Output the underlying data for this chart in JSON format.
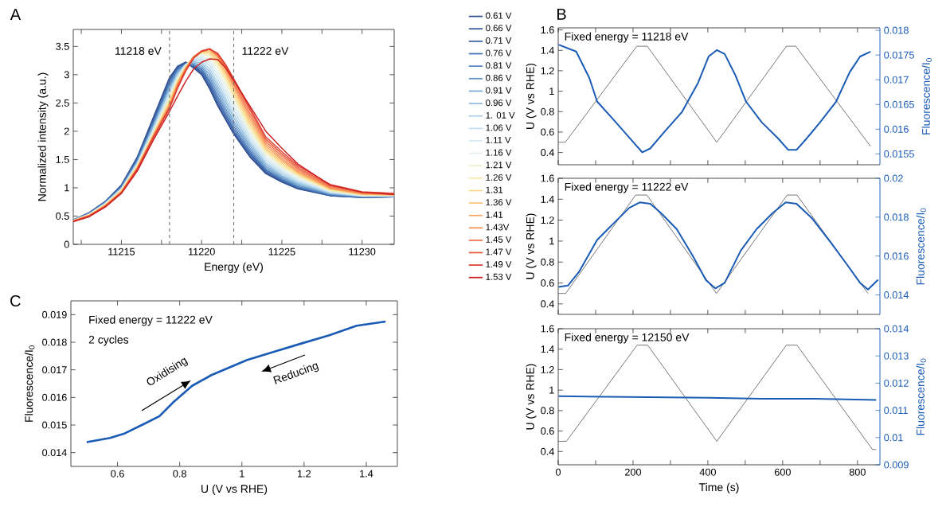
{
  "chart_data": [
    {
      "type": "line",
      "xlabel": "Energy (eV)",
      "ylabel": "Normalized intensity (a.u.)",
      "annotations": [
        "A"
      ],
      "xlim": [
        11212,
        11232
      ],
      "ylim": [
        0,
        3.8
      ],
      "xticks": [
        {
          "value": 11212.5,
          "label": null
        },
        11215,
        {
          "value": 11217.5,
          "label": null
        },
        11220,
        {
          "value": 11222.5,
          "label": null
        },
        11225,
        {
          "value": 11227.5,
          "label": null
        },
        11230
      ],
      "yticks": [
        0,
        0.5,
        1,
        1.5,
        2,
        2.5,
        3,
        3.5
      ],
      "legend": "right",
      "line_style": "solid",
      "ref_lines": [
        {
          "axis": "x",
          "value": 11218,
          "label": "11218 eV",
          "color": "#707070",
          "line_style": "dashed"
        },
        {
          "axis": "x",
          "value": 11222,
          "label": "11222 eV",
          "color": "#707070",
          "line_style": "dashed"
        }
      ],
      "x": [
        11212,
        11213,
        11214,
        11215,
        11216,
        11217,
        11218,
        11218.5,
        11219,
        11219.5,
        11220,
        11220.5,
        11221,
        11221.5,
        11222,
        11223,
        11224,
        11225,
        11226,
        11228,
        11230,
        11232
      ],
      "series": [
        {
          "name": "0.61 V",
          "color": "#2f4e8f",
          "values": [
            0.43,
            0.56,
            0.76,
            1.05,
            1.55,
            2.25,
            2.95,
            3.15,
            3.22,
            3.12,
            3.0,
            2.75,
            2.45,
            2.2,
            1.95,
            1.55,
            1.25,
            1.1,
            0.98,
            0.86,
            0.83,
            0.84
          ]
        },
        {
          "name": "0.66 V",
          "color": "#34569a",
          "values": [
            0.43,
            0.56,
            0.76,
            1.04,
            1.54,
            2.23,
            2.93,
            3.14,
            3.22,
            3.14,
            3.02,
            2.78,
            2.48,
            2.22,
            1.97,
            1.57,
            1.27,
            1.11,
            0.99,
            0.86,
            0.83,
            0.84
          ]
        },
        {
          "name": "0.71 V",
          "color": "#3a60a6",
          "values": [
            0.43,
            0.55,
            0.75,
            1.03,
            1.52,
            2.2,
            2.9,
            3.12,
            3.2,
            3.15,
            3.05,
            2.82,
            2.52,
            2.26,
            2.0,
            1.6,
            1.29,
            1.12,
            1.0,
            0.87,
            0.83,
            0.84
          ]
        },
        {
          "name": "0.76 V",
          "color": "#4470b0",
          "values": [
            0.43,
            0.55,
            0.75,
            1.02,
            1.5,
            2.17,
            2.86,
            3.1,
            3.19,
            3.16,
            3.08,
            2.86,
            2.57,
            2.3,
            2.04,
            1.63,
            1.31,
            1.14,
            1.01,
            0.87,
            0.84,
            0.84
          ]
        },
        {
          "name": "0.81 V",
          "color": "#5282be",
          "values": [
            0.43,
            0.55,
            0.74,
            1.01,
            1.49,
            2.15,
            2.83,
            3.08,
            3.18,
            3.17,
            3.1,
            2.9,
            2.62,
            2.35,
            2.08,
            1.66,
            1.33,
            1.16,
            1.02,
            0.88,
            0.84,
            0.85
          ]
        },
        {
          "name": "0.86 V",
          "color": "#6496c9",
          "values": [
            0.42,
            0.54,
            0.74,
            1.0,
            1.47,
            2.12,
            2.8,
            3.06,
            3.18,
            3.19,
            3.13,
            2.95,
            2.68,
            2.4,
            2.13,
            1.7,
            1.36,
            1.18,
            1.04,
            0.89,
            0.84,
            0.85
          ]
        },
        {
          "name": "0.91 V",
          "color": "#7aaad4",
          "values": [
            0.42,
            0.54,
            0.73,
            0.99,
            1.46,
            2.1,
            2.77,
            3.04,
            3.18,
            3.21,
            3.16,
            3.0,
            2.74,
            2.46,
            2.18,
            1.74,
            1.39,
            1.2,
            1.06,
            0.9,
            0.85,
            0.85
          ]
        },
        {
          "name": "0.96 V",
          "color": "#92bedf",
          "values": [
            0.42,
            0.54,
            0.73,
            0.99,
            1.45,
            2.08,
            2.74,
            3.02,
            3.18,
            3.23,
            3.2,
            3.05,
            2.8,
            2.52,
            2.24,
            1.78,
            1.42,
            1.22,
            1.08,
            0.9,
            0.85,
            0.85
          ]
        },
        {
          "name": "1. 01 V",
          "color": "#a9d0e8",
          "values": [
            0.42,
            0.53,
            0.72,
            0.98,
            1.44,
            2.06,
            2.71,
            3.0,
            3.18,
            3.25,
            3.24,
            3.1,
            2.86,
            2.58,
            2.3,
            1.82,
            1.45,
            1.25,
            1.1,
            0.91,
            0.85,
            0.86
          ]
        },
        {
          "name": "1.06 V",
          "color": "#bfdeef",
          "values": [
            0.42,
            0.53,
            0.72,
            0.98,
            1.43,
            2.04,
            2.68,
            2.98,
            3.18,
            3.27,
            3.28,
            3.16,
            2.93,
            2.65,
            2.37,
            1.87,
            1.49,
            1.28,
            1.12,
            0.92,
            0.86,
            0.86
          ]
        },
        {
          "name": "1.11 V",
          "color": "#d3e9f2",
          "values": [
            0.42,
            0.53,
            0.72,
            0.97,
            1.42,
            2.02,
            2.65,
            2.96,
            3.17,
            3.28,
            3.31,
            3.21,
            3.0,
            2.72,
            2.44,
            1.92,
            1.53,
            1.31,
            1.14,
            0.93,
            0.86,
            0.86
          ]
        },
        {
          "name": "1.16 V",
          "color": "#e4efe9",
          "values": [
            0.42,
            0.53,
            0.71,
            0.97,
            1.41,
            2.0,
            2.62,
            2.94,
            3.16,
            3.3,
            3.34,
            3.26,
            3.06,
            2.79,
            2.5,
            1.97,
            1.57,
            1.34,
            1.17,
            0.94,
            0.87,
            0.87
          ]
        },
        {
          "name": "1.21 V",
          "color": "#eef0cc",
          "values": [
            0.42,
            0.52,
            0.71,
            0.96,
            1.4,
            1.98,
            2.59,
            2.92,
            3.15,
            3.31,
            3.37,
            3.31,
            3.12,
            2.86,
            2.57,
            2.02,
            1.61,
            1.37,
            1.2,
            0.95,
            0.87,
            0.87
          ]
        },
        {
          "name": "1.26 V",
          "color": "#f7e9a8",
          "values": [
            0.42,
            0.52,
            0.7,
            0.95,
            1.39,
            1.96,
            2.56,
            2.9,
            3.14,
            3.32,
            3.39,
            3.35,
            3.18,
            2.92,
            2.63,
            2.07,
            1.64,
            1.4,
            1.22,
            0.96,
            0.88,
            0.87
          ]
        },
        {
          "name": "1.31",
          "color": "#fbd98a",
          "values": [
            0.42,
            0.52,
            0.7,
            0.95,
            1.38,
            1.95,
            2.53,
            2.88,
            3.13,
            3.32,
            3.4,
            3.38,
            3.22,
            2.97,
            2.68,
            2.12,
            1.67,
            1.43,
            1.24,
            0.97,
            0.88,
            0.87
          ]
        },
        {
          "name": "1.36 V",
          "color": "#fcc476",
          "values": [
            0.42,
            0.51,
            0.69,
            0.94,
            1.37,
            1.94,
            2.5,
            2.86,
            3.12,
            3.32,
            3.41,
            3.41,
            3.26,
            3.02,
            2.73,
            2.17,
            1.7,
            1.46,
            1.26,
            0.98,
            0.89,
            0.88
          ]
        },
        {
          "name": "1.41",
          "color": "#fba865",
          "values": [
            0.41,
            0.51,
            0.69,
            0.93,
            1.36,
            1.93,
            2.47,
            2.84,
            3.11,
            3.32,
            3.42,
            3.44,
            3.3,
            3.06,
            2.78,
            2.22,
            1.74,
            1.49,
            1.28,
            0.99,
            0.89,
            0.88
          ]
        },
        {
          "name": "1.43V",
          "color": "#f88e56",
          "values": [
            0.41,
            0.51,
            0.68,
            0.92,
            1.35,
            1.92,
            2.45,
            2.82,
            3.1,
            3.32,
            3.42,
            3.45,
            3.33,
            3.1,
            2.82,
            2.27,
            1.78,
            1.52,
            1.3,
            1.0,
            0.9,
            0.89
          ]
        },
        {
          "name": "1.45 V",
          "color": "#f27248",
          "values": [
            0.41,
            0.5,
            0.68,
            0.92,
            1.34,
            1.91,
            2.43,
            2.8,
            3.09,
            3.31,
            3.42,
            3.46,
            3.35,
            3.13,
            2.86,
            2.32,
            1.82,
            1.56,
            1.33,
            1.02,
            0.91,
            0.89
          ]
        },
        {
          "name": "1.47 V",
          "color": "#e9573b",
          "values": [
            0.41,
            0.5,
            0.67,
            0.91,
            1.33,
            1.9,
            2.42,
            2.78,
            3.08,
            3.3,
            3.42,
            3.46,
            3.37,
            3.16,
            2.9,
            2.38,
            1.86,
            1.6,
            1.36,
            1.04,
            0.92,
            0.9
          ]
        },
        {
          "name": "1.49 V",
          "color": "#de3e2f",
          "values": [
            0.41,
            0.5,
            0.67,
            0.91,
            1.33,
            1.89,
            2.4,
            2.76,
            3.06,
            3.29,
            3.41,
            3.45,
            3.38,
            3.18,
            2.93,
            2.42,
            1.9,
            1.64,
            1.39,
            1.06,
            0.93,
            0.9
          ]
        },
        {
          "name": "1.53 V",
          "color": "#cc2222",
          "values": [
            0.4,
            0.49,
            0.66,
            0.9,
            1.3,
            1.85,
            2.35,
            2.62,
            2.88,
            3.1,
            3.22,
            3.28,
            3.27,
            3.12,
            2.9,
            2.45,
            2.0,
            1.7,
            1.42,
            1.05,
            0.92,
            0.88
          ]
        }
      ]
    },
    {
      "type": "line",
      "ylabel": "U (V vs RHE)",
      "y2label": "Fluorescence/I$_{0}$",
      "annotations": [
        "B",
        "Fixed energy = 11218 eV"
      ],
      "tick_labels": "y",
      "xlim": [
        0,
        860
      ],
      "xticks": [
        0,
        {
          "value": 100,
          "label": null
        },
        200,
        {
          "value": 300,
          "label": null
        },
        400,
        {
          "value": 500,
          "label": null
        },
        600,
        {
          "value": 700,
          "label": null
        },
        800
      ],
      "ylim": [
        0.28,
        1.62
      ],
      "yticks": [
        0.4,
        0.6,
        0.8,
        1,
        1.2,
        1.4,
        1.6
      ],
      "y2lim": [
        0.01528,
        0.01805
      ],
      "y2ticks": [
        0.0155,
        0.016,
        0.0165,
        0.017,
        0.0175,
        0.018
      ],
      "series": [
        {
          "color": "#555555",
          "x": [
            0,
            19,
            210,
            238,
            424,
            610,
            635,
            835
          ],
          "values": [
            0.5,
            0.5,
            1.44,
            1.44,
            0.5,
            1.44,
            1.44,
            0.46
          ]
        },
        {
          "color": "#1a5bb5",
          "axis": "y2",
          "x": [
            1,
            48,
            83,
            104,
            154,
            204,
            225,
            246,
            282,
            331,
            374,
            402,
            424,
            445,
            473,
            502,
            544,
            587,
            615,
            637,
            665,
            700,
            743,
            779,
            807,
            835
          ],
          "values": [
            0.01771,
            0.01757,
            0.01704,
            0.01656,
            0.01614,
            0.01571,
            0.01553,
            0.01561,
            0.01593,
            0.01635,
            0.01694,
            0.01747,
            0.0176,
            0.01752,
            0.0171,
            0.01656,
            0.01614,
            0.01582,
            0.01558,
            0.01558,
            0.01582,
            0.01614,
            0.01656,
            0.01715,
            0.01747,
            0.01757
          ]
        }
      ]
    },
    {
      "type": "line",
      "ylabel": "U (V vs RHE)",
      "y2label": "Fluorescence/I$_{0}$",
      "annotations": [
        "Fixed energy = 11222 eV"
      ],
      "tick_labels": "y",
      "xlim": [
        0,
        860
      ],
      "xticks": [
        0,
        {
          "value": 100,
          "label": null
        },
        200,
        {
          "value": 300,
          "label": null
        },
        400,
        {
          "value": 500,
          "label": null
        },
        600,
        {
          "value": 700,
          "label": null
        },
        800
      ],
      "ylim": [
        0.3,
        1.6
      ],
      "yticks": [
        0.4,
        0.6,
        0.8,
        1,
        1.2,
        1.4,
        1.6
      ],
      "y2lim": [
        0.013,
        0.02
      ],
      "y2ticks": [
        0.014,
        0.016,
        0.018,
        0.02
      ],
      "series": [
        {
          "color": "#555555",
          "x": [
            0,
            20,
            207,
            237,
            423,
            612,
            638,
            828
          ],
          "values": [
            0.5,
            0.5,
            1.44,
            1.44,
            0.5,
            1.44,
            1.44,
            0.5
          ]
        },
        {
          "color": "#1a5bb5",
          "axis": "y2",
          "x": [
            1,
            26,
            55,
            104,
            147,
            190,
            218,
            246,
            275,
            317,
            360,
            395,
            420,
            445,
            488,
            530,
            573,
            608,
            637,
            679,
            729,
            771,
            807,
            828,
            855
          ],
          "values": [
            0.01441,
            0.01448,
            0.01517,
            0.01683,
            0.01766,
            0.01848,
            0.01876,
            0.01869,
            0.01821,
            0.01738,
            0.016,
            0.01476,
            0.01434,
            0.01462,
            0.01628,
            0.01738,
            0.01821,
            0.01876,
            0.01869,
            0.01793,
            0.01669,
            0.01559,
            0.01462,
            0.01428,
            0.01478
          ]
        }
      ]
    },
    {
      "type": "line",
      "xlabel": "Time (s)",
      "ylabel": "U (V vs RHE)",
      "y2label": "Fluorescence/I$_{0}$",
      "annotations": [
        "Fixed energy = 12150 eV"
      ],
      "xlim": [
        0,
        860
      ],
      "xticks": [
        0,
        {
          "value": 100,
          "label": null
        },
        200,
        {
          "value": 300,
          "label": null
        },
        400,
        {
          "value": 500,
          "label": null
        },
        600,
        {
          "value": 700,
          "label": null
        },
        800
      ],
      "ylim": [
        0.27,
        1.6
      ],
      "yticks": [
        0.4,
        0.6,
        0.8,
        1,
        1.2,
        1.4,
        1.6
      ],
      "y2lim": [
        0.009,
        0.014
      ],
      "y2ticks": [
        0.009,
        0.01,
        0.011,
        0.012,
        0.013,
        0.014
      ],
      "series": [
        {
          "color": "#555555",
          "x": [
            0,
            22,
            211,
            239,
            424,
            610,
            638,
            840,
            850
          ],
          "values": [
            0.5,
            0.5,
            1.44,
            1.44,
            0.5,
            1.44,
            1.44,
            0.42,
            0.42
          ]
        },
        {
          "color": "#1a5bb5",
          "axis": "y2",
          "x": [
            1,
            118,
            260,
            402,
            544,
            686,
            850
          ],
          "values": [
            0.01152,
            0.0115,
            0.01148,
            0.01146,
            0.01143,
            0.01143,
            0.01138
          ]
        }
      ]
    },
    {
      "type": "line",
      "xlabel": "U (V vs RHE)",
      "ylabel": "Fluorescence/I$_{0}$",
      "annotations": [
        "C",
        "Fixed energy = 11222 eV",
        "2 cycles",
        "Oxidising",
        "Reducing"
      ],
      "xlim": [
        0.45,
        1.5
      ],
      "xticks": [
        0.6,
        0.8,
        1,
        1.2,
        1.4
      ],
      "ylim": [
        0.0135,
        0.0195
      ],
      "yticks": [
        0.014,
        0.015,
        0.016,
        0.017,
        0.018,
        0.019
      ],
      "series": [
        {
          "color": "#1a5bb5",
          "x": [
            0.501,
            0.576,
            0.62,
            0.682,
            0.735,
            0.779,
            0.84,
            0.902,
            0.955,
            1.017,
            1.105,
            1.193,
            1.281,
            1.369,
            1.462
          ],
          "values": [
            0.01438,
            0.01453,
            0.01468,
            0.01502,
            0.01532,
            0.01582,
            0.01642,
            0.01681,
            0.01706,
            0.01736,
            0.01766,
            0.01796,
            0.01825,
            0.0186,
            0.01875
          ]
        }
      ]
    }
  ]
}
